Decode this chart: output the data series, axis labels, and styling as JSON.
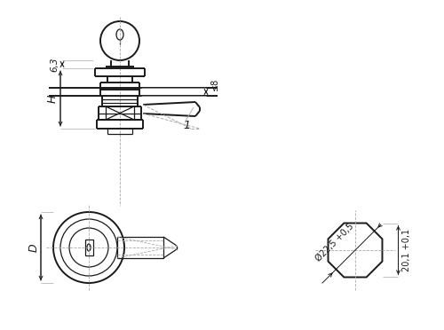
{
  "bg": "#ffffff",
  "lc": "#1a1a1a",
  "ld": "#aaaaaa",
  "lw_tk": 1.4,
  "lw_nm": 0.9,
  "lw_th": 0.6,
  "lw_dm": 0.7,
  "labels": {
    "d63": "6,3",
    "leq8": "≤8",
    "H": "H",
    "one": "1",
    "D": "D",
    "diam": "Ø22,5 +0,5",
    "width": "20,1 +0,1"
  }
}
